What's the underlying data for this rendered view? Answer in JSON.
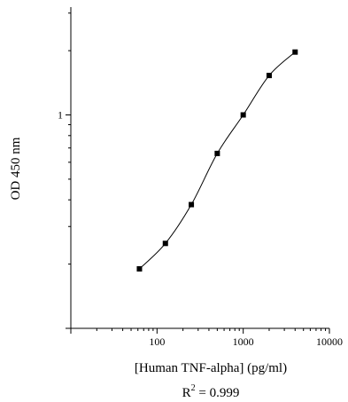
{
  "chart_data": {
    "type": "scatter",
    "xlabel": "[Human TNF-alpha] (pg/ml)",
    "ylabel": "OD 450 nm",
    "x_scale": "log",
    "y_scale": "log",
    "xlim": [
      10,
      10000
    ],
    "ylim": [
      0.1,
      3.2
    ],
    "x_ticks": [
      "100",
      "1000",
      "10000"
    ],
    "y_ticks": [
      "1"
    ],
    "fit": "R² = 0.999",
    "fit_prefix": "R",
    "fit_exponent": "2",
    "fit_suffix": " = 0.999",
    "series": [
      {
        "x": [
          62.5,
          125,
          250,
          500,
          1000,
          2000,
          4000
        ],
        "y": [
          0.19,
          0.25,
          0.38,
          0.66,
          1.0,
          1.53,
          1.97
        ]
      }
    ],
    "curve": "smooth fitted line through points",
    "grid": false,
    "legend": "none"
  }
}
